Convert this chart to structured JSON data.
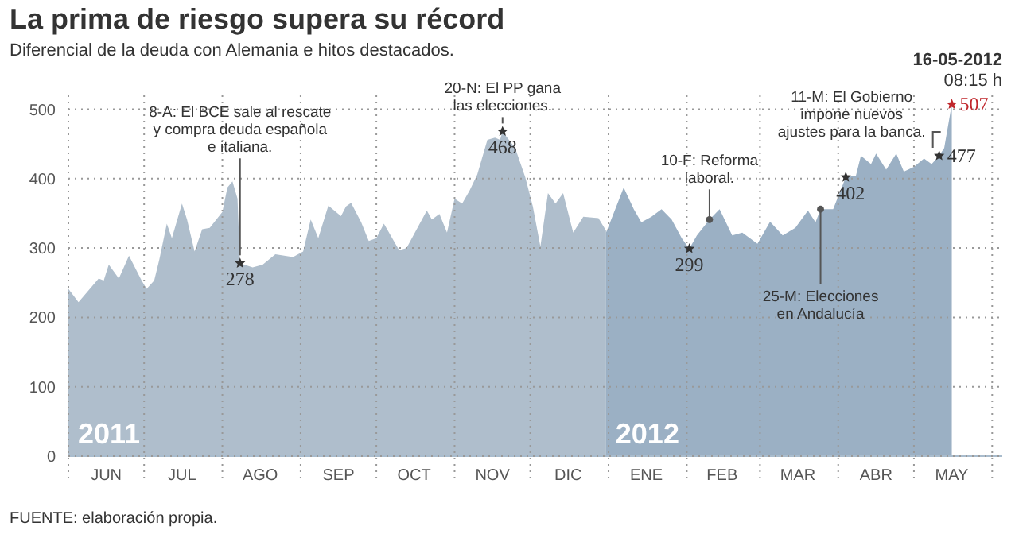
{
  "chart_data": {
    "type": "area",
    "title": "La prima de riesgo supera su récord",
    "subtitle": "Diferencial de la deuda con Alemania e hitos destacados.",
    "series": [
      {
        "name": "2011",
        "color": "#afbecc",
        "x": [
          "2011-06-01",
          "2011-06-05",
          "2011-06-13",
          "2011-06-15",
          "2011-06-17",
          "2011-06-21",
          "2011-06-25",
          "2011-06-30",
          "2011-07-02",
          "2011-07-05",
          "2011-07-07",
          "2011-07-10",
          "2011-07-12",
          "2011-07-16",
          "2011-07-18",
          "2011-07-21",
          "2011-07-24",
          "2011-07-27",
          "2011-08-01",
          "2011-08-03",
          "2011-08-05",
          "2011-08-07",
          "2011-08-08",
          "2011-08-13",
          "2011-08-17",
          "2011-08-22",
          "2011-08-29",
          "2011-08-31",
          "2011-09-02",
          "2011-09-05",
          "2011-09-08",
          "2011-09-12",
          "2011-09-17",
          "2011-09-19",
          "2011-09-21",
          "2011-09-25",
          "2011-09-28",
          "2011-10-01",
          "2011-10-04",
          "2011-10-10",
          "2011-10-13",
          "2011-10-21",
          "2011-10-23",
          "2011-10-26",
          "2011-10-29",
          "2011-11-01",
          "2011-11-04",
          "2011-11-07",
          "2011-11-10",
          "2011-11-14",
          "2011-11-17",
          "2011-11-19",
          "2011-11-20",
          "2011-11-25",
          "2011-11-29",
          "2011-12-02",
          "2011-12-05",
          "2011-12-08",
          "2011-12-11",
          "2011-12-14",
          "2011-12-18",
          "2011-12-22",
          "2011-12-28",
          "2011-12-31"
        ],
        "values": [
          241,
          222,
          256,
          253,
          276,
          256,
          289,
          253,
          241,
          253,
          283,
          335,
          314,
          364,
          341,
          295,
          327,
          329,
          352,
          387,
          396,
          371,
          278,
          272,
          276,
          291,
          287,
          291,
          295,
          341,
          314,
          361,
          346,
          360,
          365,
          337,
          310,
          314,
          335,
          297,
          300,
          354,
          341,
          349,
          322,
          371,
          364,
          383,
          406,
          456,
          459,
          456,
          468,
          444,
          402,
          360,
          302,
          379,
          364,
          379,
          322,
          345,
          343,
          325
        ]
      },
      {
        "name": "2012",
        "color": "#9bb0c4",
        "x": [
          "2011-12-31",
          "2012-01-07",
          "2012-01-11",
          "2012-01-14",
          "2012-01-18",
          "2012-01-22",
          "2012-01-26",
          "2012-01-30",
          "2012-02-02",
          "2012-02-05",
          "2012-02-10",
          "2012-02-14",
          "2012-02-19",
          "2012-02-23",
          "2012-02-29",
          "2012-03-05",
          "2012-03-10",
          "2012-03-15",
          "2012-03-20",
          "2012-03-23",
          "2012-03-25",
          "2012-03-30",
          "2012-04-04",
          "2012-04-08",
          "2012-04-10",
          "2012-04-14",
          "2012-04-16",
          "2012-04-20",
          "2012-04-24",
          "2012-04-27",
          "2012-05-01",
          "2012-05-05",
          "2012-05-08",
          "2012-05-11",
          "2012-05-13",
          "2012-05-16"
        ],
        "values": [
          322,
          387,
          356,
          337,
          345,
          356,
          341,
          314,
          299,
          318,
          341,
          356,
          318,
          322,
          306,
          338,
          318,
          329,
          354,
          337,
          356,
          356,
          402,
          404,
          433,
          421,
          436,
          413,
          436,
          410,
          417,
          429,
          421,
          433,
          444,
          507
        ]
      }
    ],
    "xlim": [
      "2011-06-01",
      "2012-06-05"
    ],
    "xticks": [
      {
        "value": "2011-06-01",
        "label": null
      },
      {
        "value": "2011-06-16",
        "label": "JUN"
      },
      {
        "value": "2011-07-01",
        "label": null
      },
      {
        "value": "2011-07-16",
        "label": "JUL"
      },
      {
        "value": "2011-08-01",
        "label": null
      },
      {
        "value": "2011-08-16",
        "label": "AGO"
      },
      {
        "value": "2011-09-01",
        "label": null
      },
      {
        "value": "2011-09-16",
        "label": "SEP"
      },
      {
        "value": "2011-10-01",
        "label": null
      },
      {
        "value": "2011-10-16",
        "label": "OCT"
      },
      {
        "value": "2011-11-01",
        "label": null
      },
      {
        "value": "2011-11-16",
        "label": "NOV"
      },
      {
        "value": "2011-12-01",
        "label": null
      },
      {
        "value": "2011-12-16",
        "label": "DIC"
      },
      {
        "value": "2012-01-01",
        "label": null
      },
      {
        "value": "2012-01-16",
        "label": "ENE"
      },
      {
        "value": "2012-02-01",
        "label": null
      },
      {
        "value": "2012-02-15",
        "label": "FEB"
      },
      {
        "value": "2012-03-01",
        "label": null
      },
      {
        "value": "2012-03-16",
        "label": "MAR"
      },
      {
        "value": "2012-04-01",
        "label": null
      },
      {
        "value": "2012-04-16",
        "label": "ABR"
      },
      {
        "value": "2012-05-01",
        "label": null
      },
      {
        "value": "2012-05-16",
        "label": "MAY"
      },
      {
        "value": "2012-06-01",
        "label": null
      }
    ],
    "ylim": [
      0,
      520
    ],
    "yticks": [
      0,
      100,
      200,
      300,
      400,
      500
    ],
    "grid": true,
    "annotations": [
      "16-05-2012",
      "08:15 h",
      "FUENTE: elaboración propia.",
      {
        "text": "8-A: El BCE sale al rescate\ny compra deuda española\ne italiana.",
        "x": "2011-08-08",
        "y": 278
      },
      {
        "text": "278",
        "x": "2011-08-08",
        "y": 278
      },
      {
        "text": "20-N: El PP gana\nlas elecciones.",
        "x": "2011-11-20",
        "y": 468
      },
      {
        "text": "468",
        "x": "2011-11-20",
        "y": 468
      },
      {
        "text": "10-F: Reforma\nlaboral.",
        "x": "2012-02-10",
        "y": 341
      },
      {
        "text": "299",
        "x": "2012-02-02",
        "y": 299
      },
      {
        "text": "25-M: Elecciones\nen Andalucía",
        "x": "2012-03-25",
        "y": 356
      },
      {
        "text": "402",
        "x": "2012-04-04",
        "y": 402
      },
      {
        "text": "11-M: El Gobierno\nimpone nuevos\najustes para la banca.",
        "x": "2012-05-11",
        "y": 433
      },
      "477",
      {
        "text": "507",
        "x": "2012-05-16",
        "y": 507
      }
    ]
  }
}
